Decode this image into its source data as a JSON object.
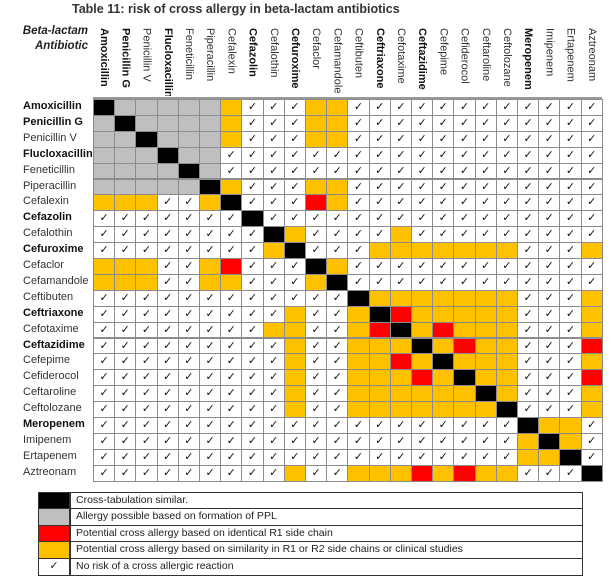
{
  "title": "Table 11: risk of cross allergy in beta-lactam antibiotics",
  "corner_label": [
    "Beta-lactam",
    "Antibiotic"
  ],
  "colors": {
    "B": "#000000",
    "G": "#BFBFBF",
    "R": "#FF0000",
    "O": "#FFC000",
    "C": "#FFFFFF"
  },
  "check_symbol": "✓",
  "antibiotics": [
    {
      "name": "Amoxicillin",
      "bold": true
    },
    {
      "name": "Penicillin G",
      "bold": true
    },
    {
      "name": "Penicillin V",
      "bold": false
    },
    {
      "name": "Flucloxacillin",
      "bold": true
    },
    {
      "name": "Feneticillin",
      "bold": false
    },
    {
      "name": "Piperacillin",
      "bold": false
    },
    {
      "name": "Cefalexin",
      "bold": false
    },
    {
      "name": "Cefazolin",
      "bold": true
    },
    {
      "name": "Cefalothin",
      "bold": false
    },
    {
      "name": "Cefuroxime",
      "bold": true
    },
    {
      "name": "Cefaclor",
      "bold": false
    },
    {
      "name": "Cefamandole",
      "bold": false
    },
    {
      "name": "Ceftibuten",
      "bold": false
    },
    {
      "name": "Ceftriaxone",
      "bold": true
    },
    {
      "name": "Cefotaxime",
      "bold": false
    },
    {
      "name": "Ceftazidime",
      "bold": true
    },
    {
      "name": "Cefepime",
      "bold": false
    },
    {
      "name": "Cefiderocol",
      "bold": false
    },
    {
      "name": "Ceftaroline",
      "bold": false
    },
    {
      "name": "Ceftolozane",
      "bold": false
    },
    {
      "name": "Meropenem",
      "bold": true
    },
    {
      "name": "Imipenem",
      "bold": false
    },
    {
      "name": "Ertapenem",
      "bold": false
    },
    {
      "name": "Aztreonam",
      "bold": false
    }
  ],
  "matrix": [
    "BGGGGGOCCCOOCCCCCCCCCCCC",
    "GBGGGGOCCCOOCCCCCCCCCCCC",
    "GGBGGGOCCCOOCCCCCCCCCCCC",
    "GGGBGGCCCCCCCCCCCCCCCCCC",
    "GGGGBGCCCCCCCCCCCCCCCCCC",
    "GGGGGBOCCCOOCCCCCCCCCCCC",
    "OOOCCOBCCCROCCCCCCCCCCCC",
    "CCCCCCCBCCCCCCCCCCCCCCCC",
    "CCCCCCCCBOCCCCOCCCCCCCCC",
    "CCCCCCCCOBCCCOOOOOOOCCCO",
    "OOOCCORCCCBOCCCCCCCCCCCC",
    "OOOCCOOCCCOBCCCCCCCCCCCC",
    "CCCCCCCCCCCCBOOOOOOOCCCO",
    "CCCCCCCCCOCCOBROOOOOCCCO",
    "CCCCCCCCOOCCORBOROOOCCCO",
    "CCCCCCCCCOCCOOOBOROOCCCR",
    "CCCCCCCCCOCCOOROBOOOCCCO",
    "CCCCCCCCCOCCOOOROBOOCCCR",
    "CCCCCCCCCOCCOOOOOOBOCCCO",
    "CCCCCCCCCOCCOOOOOOOBCCCO",
    "CCCCCCCCCCCCCCCCCCCCBOOC",
    "CCCCCCCCCCCCCCCCCCCCOBOC",
    "CCCCCCCCCCCCCCCCCCCCOOBC",
    "CCCCCCCCCOCCOOOROROOCCCB"
  ],
  "legend": [
    {
      "code": "B",
      "text": "Cross-tabulation similar."
    },
    {
      "code": "G",
      "text": "Allergy possible based on formation of PPL"
    },
    {
      "code": "R",
      "text": "Potential cross allergy based on identical R1 side chain"
    },
    {
      "code": "O",
      "text": "Potential cross allergy based on similarity in R1 or R2 side chains or clinical studies"
    },
    {
      "code": "C",
      "text": "No risk of a cross allergic reaction"
    }
  ]
}
